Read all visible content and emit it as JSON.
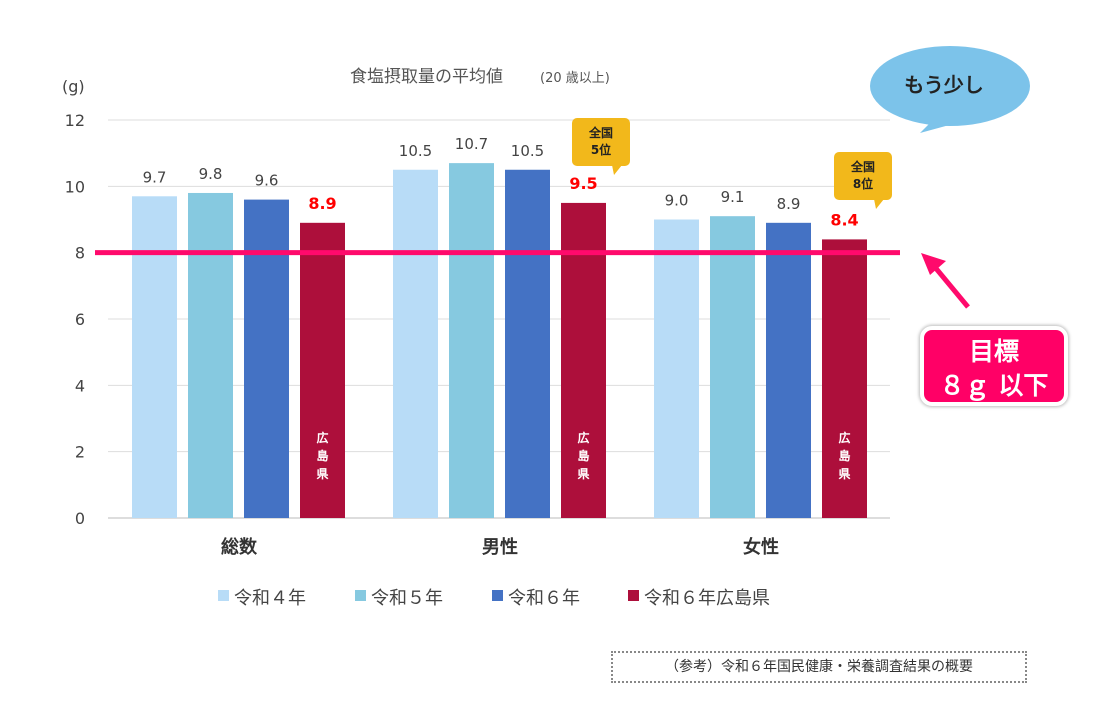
{
  "chart_data": {
    "type": "bar",
    "title": "食塩摂取量の平均値",
    "subtitle": "(20 歳以上)",
    "ylabel": "(g)",
    "ylim": [
      0,
      12
    ],
    "yticks": [
      "0",
      "2",
      "4",
      "6",
      "8",
      "10",
      "12"
    ],
    "grid": true,
    "legend_position": "bottom",
    "categories": [
      "総数",
      "男性",
      "女性"
    ],
    "series": [
      {
        "name": "令和４年",
        "values": [
          9.7,
          10.5,
          9.0
        ],
        "labels": [
          "9.7",
          "10.5",
          "9.0"
        ],
        "color": "#b8dcf7"
      },
      {
        "name": "令和５年",
        "values": [
          9.8,
          10.7,
          9.1
        ],
        "labels": [
          "9.8",
          "10.7",
          "9.1"
        ],
        "color": "#86c9e0"
      },
      {
        "name": "令和６年",
        "values": [
          9.6,
          10.5,
          8.9
        ],
        "labels": [
          "9.6",
          "10.5",
          "8.9"
        ],
        "color": "#4472c4"
      },
      {
        "name": "令和６年広島県",
        "values": [
          8.9,
          9.5,
          8.4
        ],
        "labels": [
          "8.9",
          "9.5",
          "8.4"
        ],
        "color": "#ad0f3b",
        "label_color": "#ff0000",
        "bar_text": "広島県"
      }
    ],
    "target_line": {
      "value": 8,
      "color": "#ff0a6c"
    },
    "annotations": {
      "rank_male": "全国\n5位",
      "rank_female": "全国\n8位",
      "bubble": "もう少し",
      "goal_line1": "目標",
      "goal_line2": "８ｇ 以下"
    }
  },
  "footer": {
    "reference": "（参考）令和６年国民健康・栄養調査結果の概要"
  }
}
